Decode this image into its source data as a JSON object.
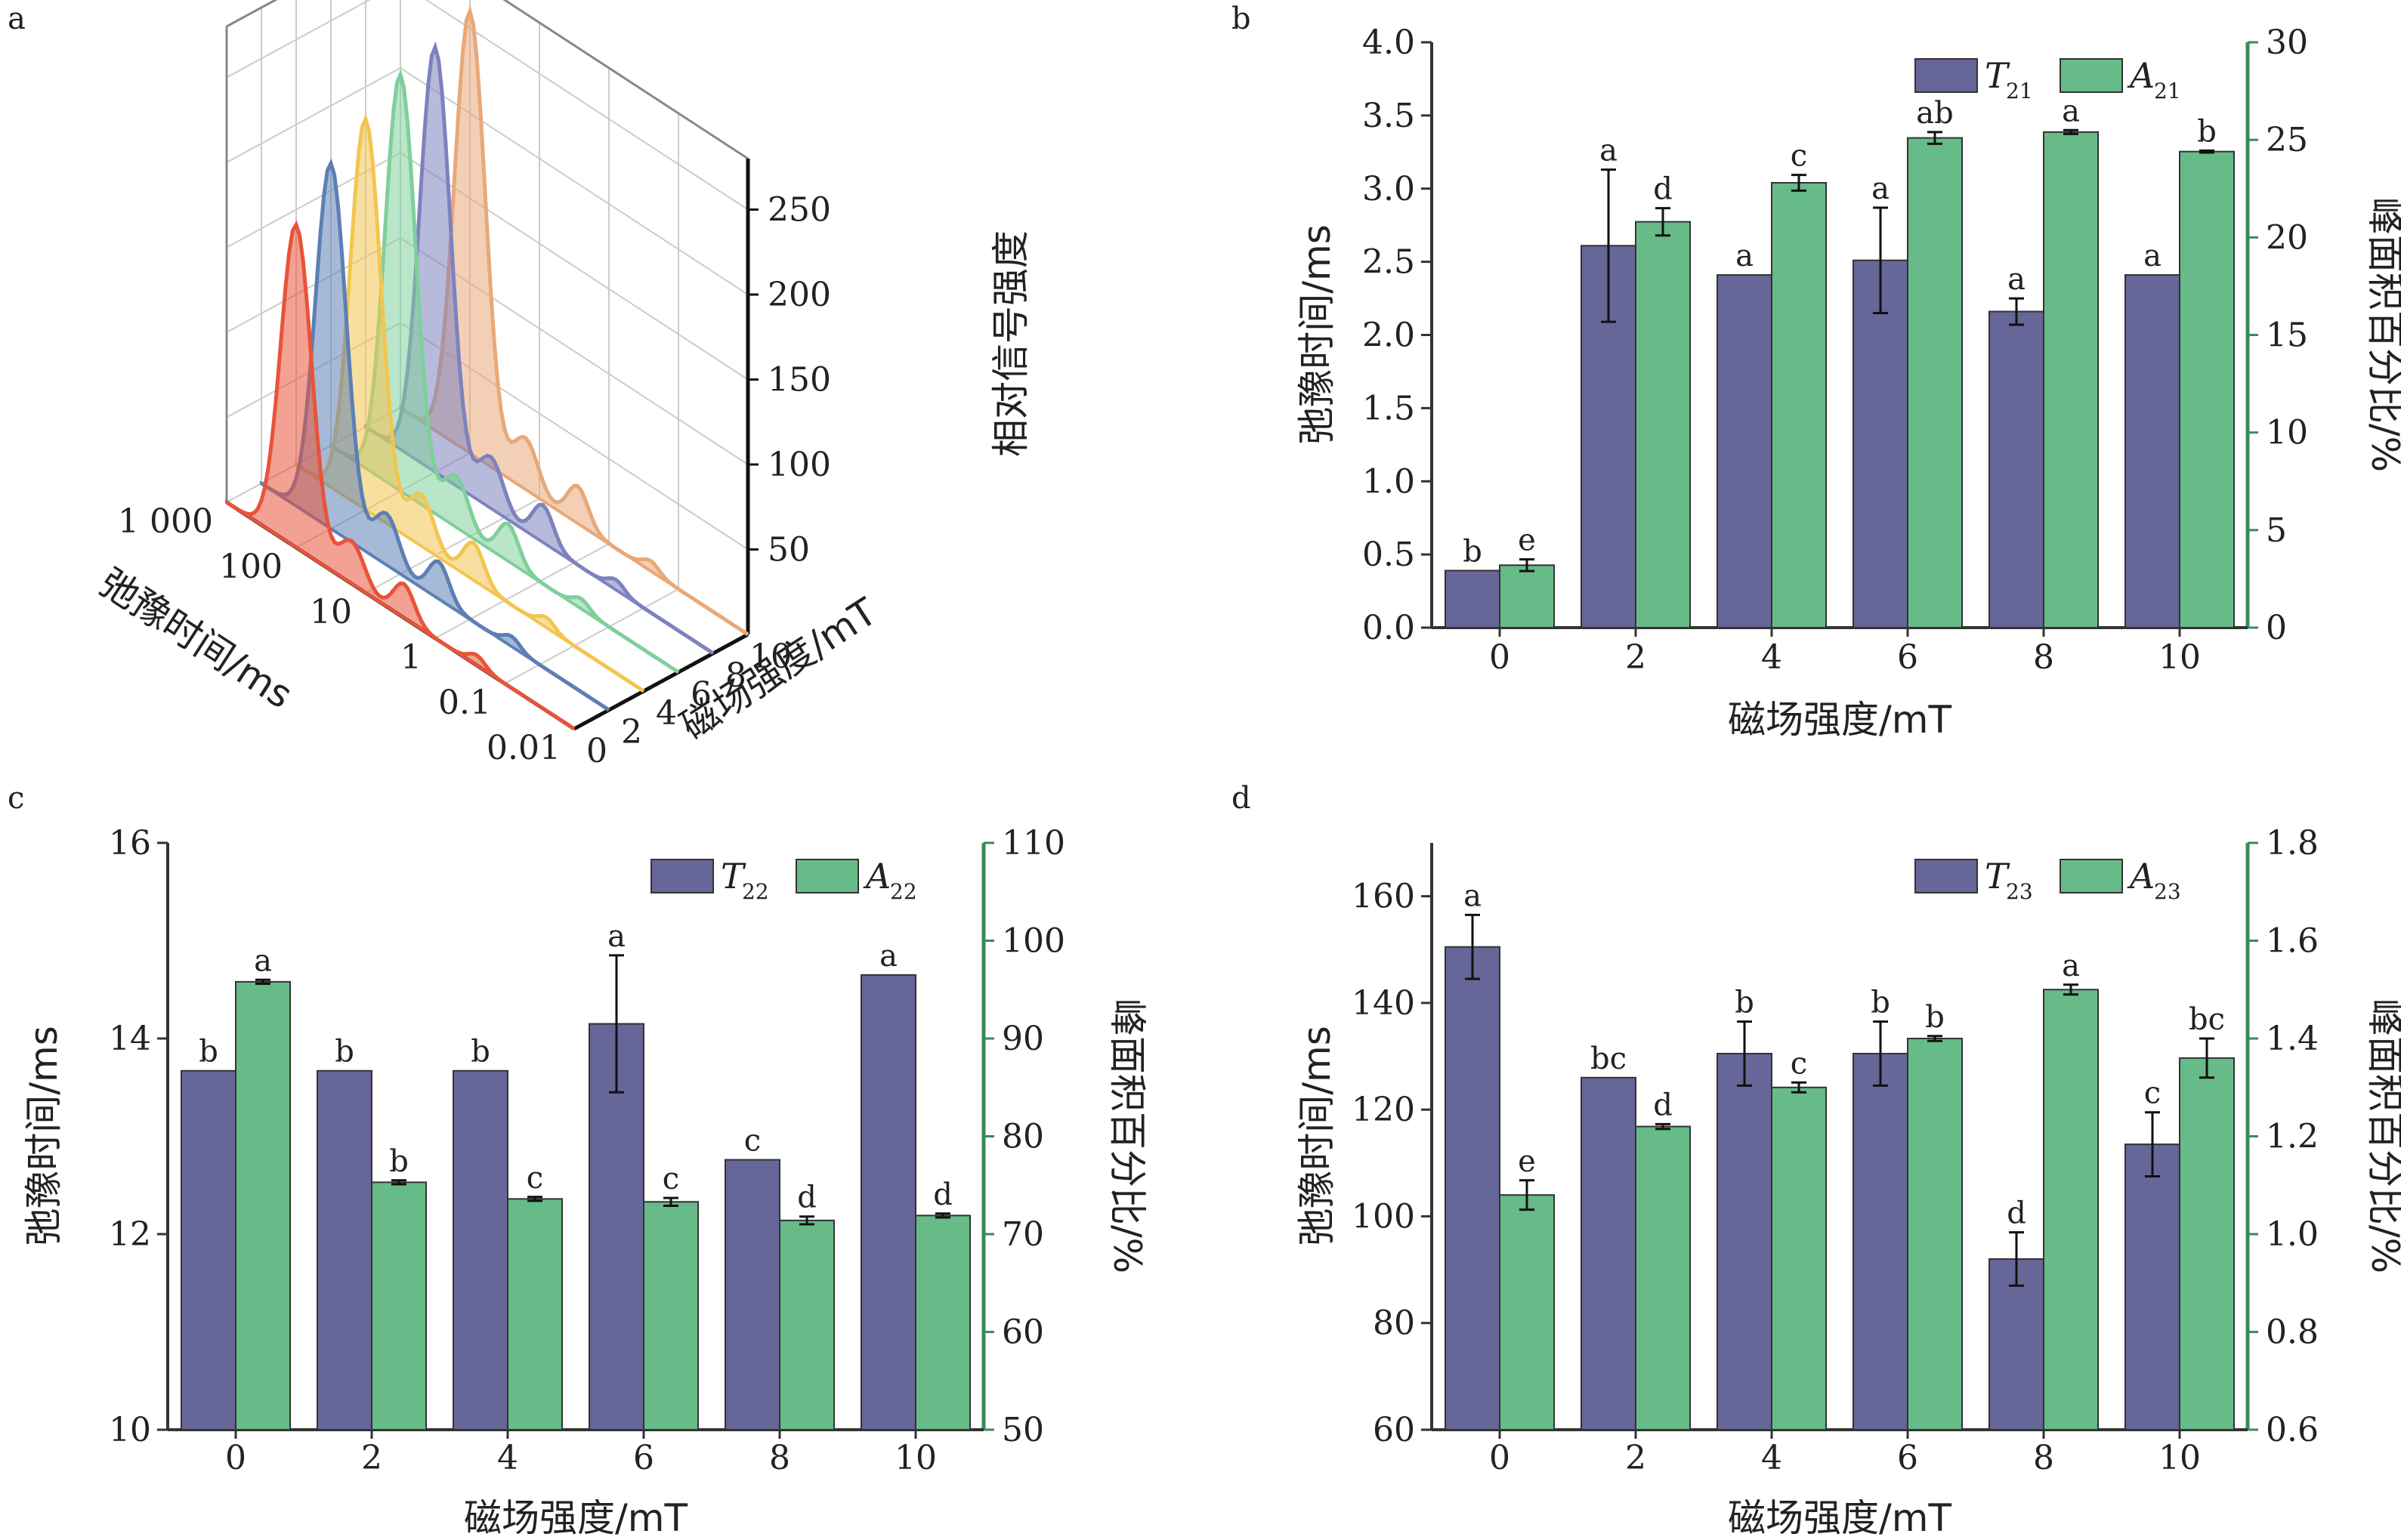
{
  "figure_labels": {
    "a": "a",
    "b": "b",
    "c": "c",
    "d": "d"
  },
  "colors": {
    "T": "#666699",
    "A": "#66bb88",
    "axis_right": "#3a8a5a",
    "axis_left": "#333333"
  },
  "chart_data": [
    {
      "panel": "a",
      "type": "area",
      "title": "",
      "xlabel": "弛豫时间/ms",
      "ylabel": "磁场强度/mT",
      "zlabel": "相对信号强度",
      "x_ticks": [
        "1 000",
        "100",
        "10",
        "1",
        "0.1",
        "0.01"
      ],
      "y_ticks": [
        "0",
        "2",
        "4",
        "6",
        "8",
        "10"
      ],
      "z_ticks": [
        "50",
        "100",
        "150",
        "200",
        "250"
      ],
      "zlim": [
        0,
        280
      ],
      "series": [
        {
          "name": "0 mT",
          "color": "#e8533a",
          "x_log": [
            -2,
            -1,
            0,
            0.4,
            1,
            2,
            3
          ],
          "values": [
            0,
            1,
            3,
            20,
            5,
            190,
            0
          ]
        },
        {
          "name": "2 mT",
          "color": "#5c7fb5",
          "x_log": [
            -2,
            -1,
            0,
            0.4,
            1,
            2,
            3
          ],
          "values": [
            0,
            1,
            3,
            22,
            6,
            215,
            0
          ]
        },
        {
          "name": "4 mT",
          "color": "#f3c550",
          "x_log": [
            -2,
            -1,
            0,
            0.4,
            1,
            2,
            3
          ],
          "values": [
            0,
            1,
            3,
            22,
            6,
            230,
            0
          ]
        },
        {
          "name": "6 mT",
          "color": "#7fcf9b",
          "x_log": [
            -2,
            -1,
            0,
            0.4,
            1,
            2,
            3
          ],
          "values": [
            0,
            1,
            3,
            22,
            6,
            245,
            0
          ]
        },
        {
          "name": "8 mT",
          "color": "#7d82be",
          "x_log": [
            -2,
            -1,
            0,
            0.4,
            1,
            2,
            3
          ],
          "values": [
            0,
            1,
            3,
            22,
            6,
            250,
            0
          ]
        },
        {
          "name": "10 mT",
          "color": "#e8a878",
          "x_log": [
            -2,
            -1,
            0,
            0.4,
            1,
            2,
            3
          ],
          "values": [
            0,
            1,
            3,
            22,
            6,
            260,
            0
          ]
        }
      ]
    },
    {
      "panel": "b",
      "type": "bar",
      "categories": [
        "0",
        "2",
        "4",
        "6",
        "8",
        "10"
      ],
      "xlabel": "磁场强度/mT",
      "ylabel": "弛豫时间/ms",
      "ylabel_right": "峰面积百分比/%",
      "ylim": [
        0,
        4.0
      ],
      "ylim_right": [
        0,
        30
      ],
      "yticks": [
        "0.0",
        "0.5",
        "1.0",
        "1.5",
        "2.0",
        "2.5",
        "3.0",
        "3.5",
        "4.0"
      ],
      "yticks_right": [
        "0",
        "5",
        "10",
        "15",
        "20",
        "25",
        "30"
      ],
      "legend": {
        "T_main": "T",
        "T_sub": "21",
        "A_main": "A",
        "A_sub": "21",
        "position": "top-right"
      },
      "series": [
        {
          "name": "T21",
          "axis": "left",
          "values": [
            0.39,
            2.61,
            2.41,
            2.51,
            2.16,
            2.41
          ],
          "errors": [
            0,
            0.52,
            0,
            0.36,
            0.09,
            0
          ],
          "letters": [
            "b",
            "a",
            "a",
            "a",
            "a",
            "a"
          ]
        },
        {
          "name": "A21",
          "axis": "right",
          "values": [
            3.2,
            20.8,
            22.8,
            25.1,
            25.4,
            24.4
          ],
          "errors": [
            0.3,
            0.7,
            0.4,
            0.3,
            0.1,
            0.05
          ],
          "letters": [
            "e",
            "d",
            "c",
            "ab",
            "a",
            "b"
          ]
        }
      ]
    },
    {
      "panel": "c",
      "type": "bar",
      "categories": [
        "0",
        "2",
        "4",
        "6",
        "8",
        "10"
      ],
      "xlabel": "磁场强度/mT",
      "ylabel": "弛豫时间/ms",
      "ylabel_right": "峰面积百分比/%",
      "ylim": [
        10,
        16
      ],
      "ylim_right": [
        50,
        110
      ],
      "yticks": [
        "10",
        "12",
        "14",
        "16"
      ],
      "yticks_right": [
        "50",
        "60",
        "70",
        "80",
        "90",
        "100",
        "110"
      ],
      "legend": {
        "T_main": "T",
        "T_sub": "22",
        "A_main": "A",
        "A_sub": "22",
        "position": "top-right"
      },
      "series": [
        {
          "name": "T22",
          "axis": "left",
          "values": [
            13.67,
            13.67,
            13.67,
            14.15,
            12.76,
            14.65
          ],
          "errors": [
            0,
            0,
            0,
            0.7,
            0,
            0
          ],
          "letters": [
            "b",
            "b",
            "b",
            "a",
            "c",
            "a"
          ]
        },
        {
          "name": "A22",
          "axis": "right",
          "values": [
            95.8,
            75.3,
            73.6,
            73.3,
            71.4,
            71.9
          ],
          "errors": [
            0.2,
            0.2,
            0.2,
            0.4,
            0.4,
            0.2
          ],
          "letters": [
            "a",
            "b",
            "c",
            "c",
            "d",
            "d"
          ]
        }
      ]
    },
    {
      "panel": "d",
      "type": "bar",
      "categories": [
        "0",
        "2",
        "4",
        "6",
        "8",
        "10"
      ],
      "xlabel": "磁场强度/mT",
      "ylabel": "弛豫时间/ms",
      "ylabel_right": "峰面积百分比/%",
      "ylim": [
        60,
        170
      ],
      "ylim_right": [
        0.6,
        1.8
      ],
      "yticks": [
        "60",
        "80",
        "100",
        "120",
        "140",
        "160"
      ],
      "yticks_right": [
        "0.6",
        "0.8",
        "1.0",
        "1.2",
        "1.4",
        "1.6",
        "1.8"
      ],
      "legend": {
        "T_main": "T",
        "T_sub": "23",
        "A_main": "A",
        "A_sub": "23",
        "position": "top-right"
      },
      "series": [
        {
          "name": "T23",
          "axis": "left",
          "values": [
            150.5,
            126,
            130.5,
            130.5,
            92,
            113.5
          ],
          "errors": [
            6,
            0,
            6,
            6,
            5,
            6
          ],
          "letters": [
            "a",
            "bc",
            "b",
            "b",
            "d",
            "c"
          ]
        },
        {
          "name": "A23",
          "axis": "right",
          "values": [
            1.08,
            1.22,
            1.3,
            1.4,
            1.5,
            1.36
          ],
          "errors": [
            0.03,
            0.005,
            0.01,
            0.005,
            0.01,
            0.04
          ],
          "letters": [
            "e",
            "d",
            "c",
            "b",
            "a",
            "bc"
          ]
        }
      ]
    }
  ]
}
